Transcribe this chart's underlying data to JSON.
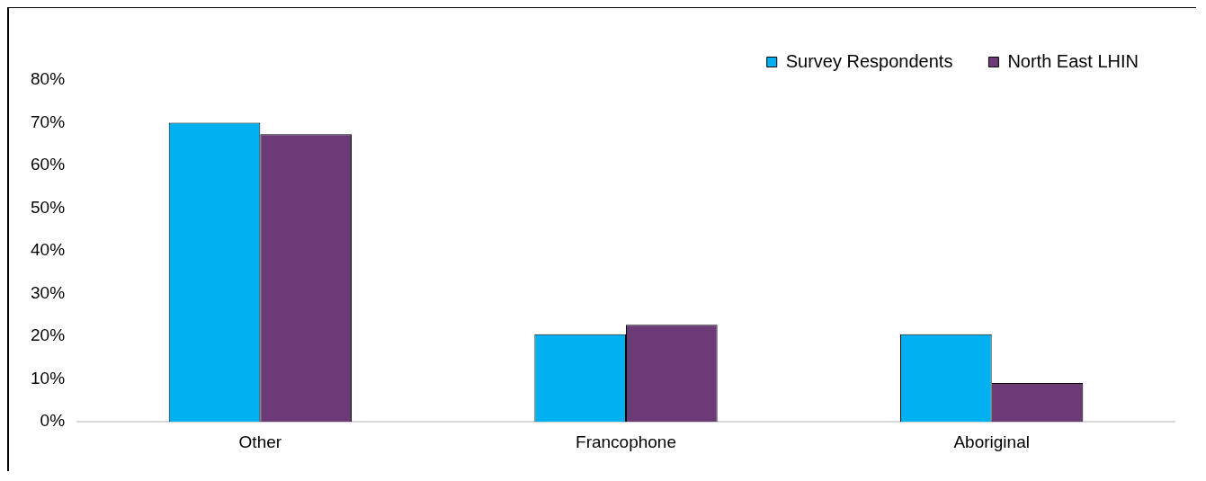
{
  "chart_data": {
    "type": "bar",
    "categories": [
      "Other",
      "Francophone",
      "Aboriginal"
    ],
    "series": [
      {
        "name": "Survey Respondents",
        "color": "#00b0f0",
        "values": [
          70,
          20.5,
          20.5
        ]
      },
      {
        "name": "North East LHIN",
        "color": "#6b3a77",
        "values": [
          67.3,
          22.7,
          9.1
        ]
      }
    ],
    "ylim": [
      0,
      80
    ],
    "yticks": [
      {
        "value": 0,
        "label": "0%"
      },
      {
        "value": 10,
        "label": "10%"
      },
      {
        "value": 20,
        "label": "20%"
      },
      {
        "value": 30,
        "label": "30%"
      },
      {
        "value": 40,
        "label": "40%"
      },
      {
        "value": 50,
        "label": "50%"
      },
      {
        "value": 60,
        "label": "60%"
      },
      {
        "value": 70,
        "label": "70%"
      },
      {
        "value": 80,
        "label": "80%"
      }
    ],
    "grid": false,
    "legend": "top right"
  }
}
